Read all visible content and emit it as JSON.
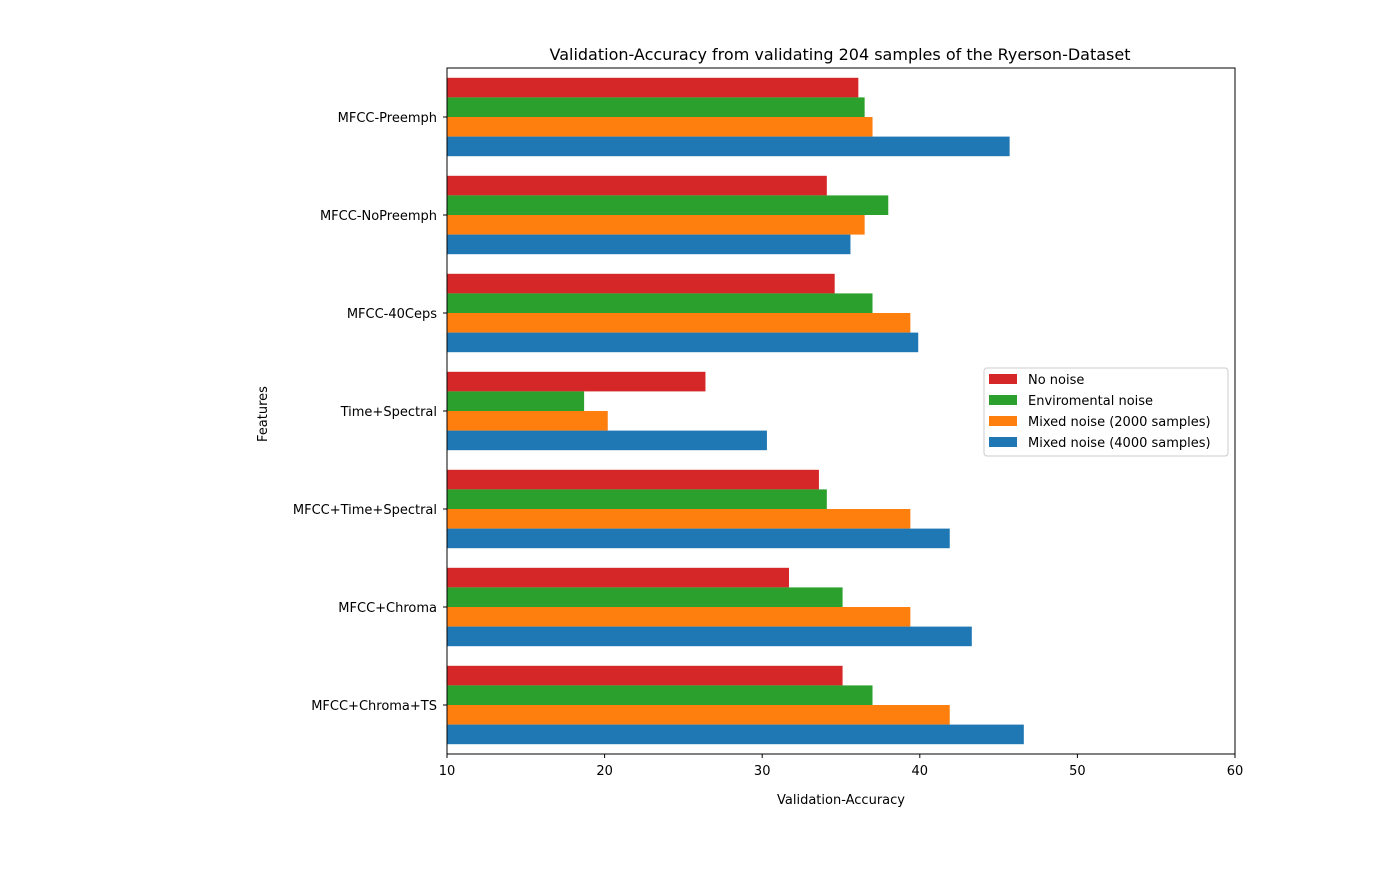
{
  "chart_data": {
    "type": "bar",
    "orientation": "horizontal",
    "title": "Validation-Accuracy from validating 204 samples of the Ryerson-Dataset",
    "xlabel": "Validation-Accuracy",
    "ylabel": "Features",
    "xlim": [
      10,
      60
    ],
    "xticks": [
      10,
      20,
      30,
      40,
      50,
      60
    ],
    "grid": false,
    "legend_position": "center-right",
    "categories": [
      "MFCC-Preemph",
      "MFCC-NoPreemph",
      "MFCC-40Ceps",
      "Time+Spectral",
      "MFCC+Time+Spectral",
      "MFCC+Chroma",
      "MFCC+Chroma+TS"
    ],
    "series": [
      {
        "name": "No noise",
        "color": "#d62728",
        "values": [
          36.1,
          34.1,
          34.6,
          26.4,
          33.6,
          31.7,
          35.1
        ]
      },
      {
        "name": "Enviromental noise",
        "color": "#2ca02c",
        "values": [
          36.5,
          38.0,
          37.0,
          18.7,
          34.1,
          35.1,
          37.0
        ]
      },
      {
        "name": "Mixed noise (2000 samples)",
        "color": "#ff7f0e",
        "values": [
          37.0,
          36.5,
          39.4,
          20.2,
          39.4,
          39.4,
          41.9
        ]
      },
      {
        "name": "Mixed noise (4000 samples)",
        "color": "#1f77b4",
        "values": [
          45.7,
          35.6,
          39.9,
          30.3,
          41.9,
          43.3,
          46.6
        ]
      }
    ]
  }
}
